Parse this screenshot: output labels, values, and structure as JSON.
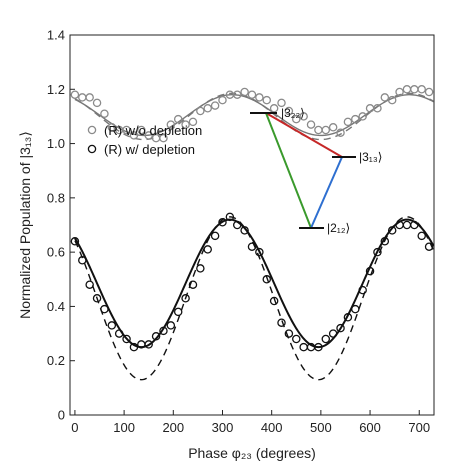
{
  "chart_data": {
    "type": "scatter",
    "xlabel": "Phase φ₂₃ (degrees)",
    "ylabel": "Normalized Population of |3₁₃⟩",
    "xlim": [
      -10,
      730
    ],
    "ylim": [
      0,
      1.4
    ],
    "xticks": [
      "0",
      "100",
      "200",
      "300",
      "400",
      "500",
      "600",
      "700"
    ],
    "yticks": [
      "0",
      "0.2",
      "0.4",
      "0.6",
      "0.8",
      "1.0",
      "1.2",
      "1.4"
    ],
    "grid": false,
    "legend_position": "middle-left",
    "series": [
      {
        "name": "(R) w/o depletion",
        "marker": "open-circle",
        "color": "#8a8a8a",
        "x": [
          0,
          15,
          30,
          45,
          60,
          75,
          90,
          105,
          120,
          135,
          150,
          165,
          180,
          195,
          210,
          225,
          240,
          255,
          270,
          285,
          300,
          315,
          330,
          345,
          360,
          375,
          390,
          405,
          420,
          435,
          450,
          465,
          480,
          495,
          510,
          525,
          540,
          555,
          570,
          585,
          600,
          615,
          630,
          645,
          660,
          675,
          690,
          705,
          720
        ],
        "y": [
          1.18,
          1.17,
          1.17,
          1.15,
          1.11,
          1.06,
          1.05,
          1.05,
          1.03,
          1.05,
          1.03,
          1.02,
          1.02,
          1.07,
          1.09,
          1.07,
          1.08,
          1.12,
          1.13,
          1.14,
          1.16,
          1.18,
          1.18,
          1.19,
          1.18,
          1.17,
          1.16,
          1.13,
          1.15,
          1.12,
          1.09,
          1.1,
          1.07,
          1.05,
          1.05,
          1.06,
          1.04,
          1.08,
          1.09,
          1.1,
          1.13,
          1.13,
          1.17,
          1.16,
          1.19,
          1.2,
          1.2,
          1.2,
          1.19
        ]
      },
      {
        "name": "(R) w/ depletion",
        "marker": "open-circle",
        "color": "#111111",
        "x": [
          0,
          15,
          30,
          45,
          60,
          75,
          90,
          105,
          120,
          135,
          150,
          165,
          180,
          195,
          210,
          225,
          240,
          255,
          270,
          285,
          300,
          315,
          330,
          345,
          360,
          375,
          390,
          405,
          420,
          435,
          450,
          465,
          480,
          495,
          510,
          525,
          540,
          555,
          570,
          585,
          600,
          615,
          630,
          645,
          660,
          675,
          690,
          705,
          720
        ],
        "y": [
          0.64,
          0.57,
          0.48,
          0.43,
          0.39,
          0.33,
          0.3,
          0.28,
          0.25,
          0.26,
          0.26,
          0.29,
          0.31,
          0.33,
          0.38,
          0.43,
          0.48,
          0.54,
          0.61,
          0.66,
          0.71,
          0.73,
          0.7,
          0.68,
          0.62,
          0.6,
          0.5,
          0.42,
          0.34,
          0.3,
          0.28,
          0.25,
          0.25,
          0.25,
          0.28,
          0.3,
          0.32,
          0.36,
          0.39,
          0.46,
          0.53,
          0.6,
          0.64,
          0.68,
          0.7,
          0.7,
          0.7,
          0.66,
          0.62
        ]
      }
    ],
    "fits": [
      {
        "style": "solid",
        "color": "#111111",
        "offset": 0.485,
        "amplitude": 0.235,
        "phase_deg": 315,
        "period_deg": 360
      },
      {
        "style": "dashed",
        "color": "#111111",
        "offset": 0.43,
        "amplitude": 0.3,
        "phase_deg": 315,
        "period_deg": 360
      },
      {
        "style": "solid",
        "color": "#777777",
        "offset": 1.105,
        "amplitude": 0.075,
        "phase_deg": 320,
        "period_deg": 360
      },
      {
        "style": "dashed",
        "color": "#777777",
        "offset": 1.1,
        "amplitude": 0.085,
        "phase_deg": 320,
        "period_deg": 360
      }
    ],
    "inset_levels": [
      "|3₂₂⟩",
      "|3₁₃⟩",
      "|2₁₂⟩"
    ],
    "inset_colors": {
      "red": "#c62828",
      "green": "#3a9a2c",
      "blue": "#2e6fd0"
    }
  }
}
